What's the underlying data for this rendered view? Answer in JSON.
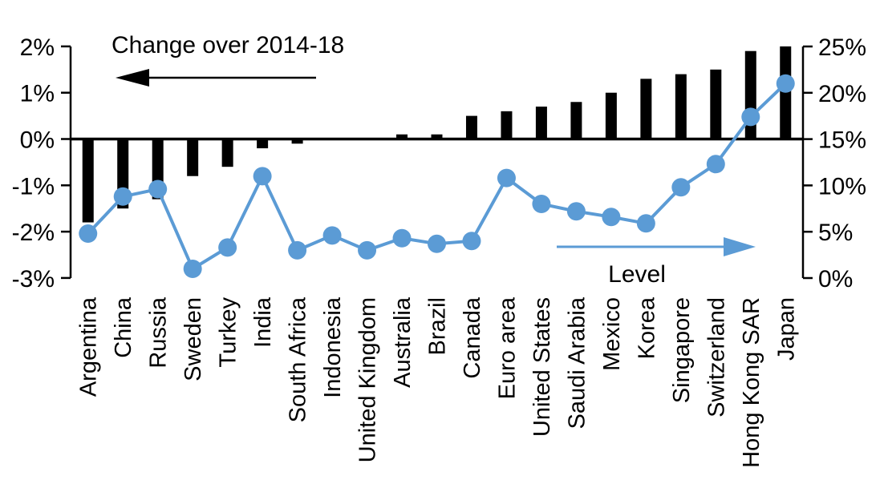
{
  "colors": {
    "bar": "#000000",
    "line": "#5B9BD5",
    "axis": "#000000",
    "text": "#000000",
    "background": "#FFFFFF"
  },
  "annotations": {
    "left_series": {
      "text": "Change over 2014-18",
      "arrow_direction": "left",
      "arrow_color": "#000000"
    },
    "right_series": {
      "text": "Level",
      "arrow_direction": "right",
      "arrow_color": "#5B9BD5"
    }
  },
  "chart_data": {
    "type": "bar",
    "subtype": "combo-dual-axis (bars on left axis, line with circle markers on right axis)",
    "title": "Change over 2014-18",
    "xlabel": "",
    "ylabel": "",
    "grid": false,
    "legend_position": "none",
    "categories": [
      "Argentina",
      "China",
      "Russia",
      "Sweden",
      "Turkey",
      "India",
      "South Africa",
      "Indonesia",
      "United Kingdom",
      "Australia",
      "Brazil",
      "Canada",
      "Euro area",
      "United States",
      "Saudi Arabia",
      "Mexico",
      "Korea",
      "Singapore",
      "Switzerland",
      "Hong Kong SAR",
      "Japan"
    ],
    "series": [
      {
        "name": "Change over 2014-18",
        "chart": "bar",
        "axis": "left",
        "unit": "%",
        "values": [
          -1.8,
          -1.5,
          -1.3,
          -0.8,
          -0.6,
          -0.2,
          -0.1,
          0,
          0,
          0.1,
          0.1,
          0.5,
          0.6,
          0.7,
          0.8,
          1.0,
          1.3,
          1.4,
          1.5,
          1.9,
          2.0
        ]
      },
      {
        "name": "Level",
        "chart": "line",
        "axis": "right",
        "unit": "%",
        "values": [
          4.8,
          8.8,
          9.6,
          1.0,
          3.3,
          11.0,
          3.0,
          4.6,
          3.0,
          4.3,
          3.7,
          4.0,
          10.8,
          8.0,
          7.2,
          6.6,
          5.9,
          9.8,
          12.3,
          17.4,
          21.0
        ]
      }
    ],
    "left_axis": {
      "range": [
        -3,
        2
      ],
      "ticks": [
        2,
        1,
        0,
        -1,
        -2,
        -3
      ],
      "tick_labels": [
        "2%",
        "1%",
        "0%",
        "-1%",
        "-2%",
        "-3%"
      ]
    },
    "right_axis": {
      "range": [
        0,
        25
      ],
      "ticks": [
        25,
        20,
        15,
        10,
        5,
        0
      ],
      "tick_labels": [
        "25%",
        "20%",
        "15%",
        "10%",
        "5%",
        "0%"
      ]
    }
  }
}
